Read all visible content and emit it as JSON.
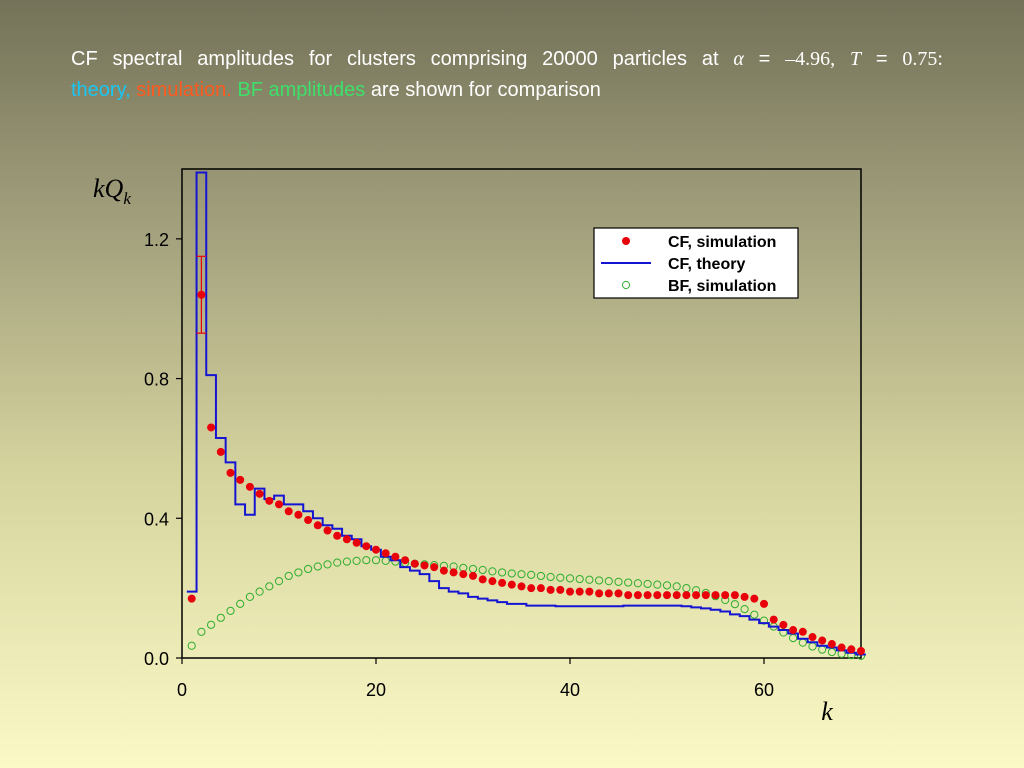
{
  "title": {
    "line1_words": [
      "CF",
      "spectral",
      "amplitudes",
      "for",
      "clusters",
      "comprising",
      "20000",
      "particles",
      "at"
    ],
    "alpha_symbol": "α",
    "equals": "=",
    "alpha_value": "–4.96,",
    "T_symbol": "T",
    "T_value": "0.75:",
    "line2": {
      "theory": "theory,",
      "simulation": "simulation.",
      "bf": "BF amplitudes",
      "rest": "are shown for comparison"
    }
  },
  "colors": {
    "cf_simulation": "#e8000a",
    "cf_theory": "#1414d2",
    "bf_simulation": "#2fae2f",
    "error_bar": "#e8000a",
    "theory_word": "#19c6f2",
    "simulation_word": "#ff5a1e",
    "bf_word": "#3ce06a"
  },
  "chart_data": {
    "type": "scatter",
    "xlabel": "k",
    "ylabel": "kQk",
    "ylabel_main": "kQ",
    "ylabel_sub": "k",
    "xlim": [
      0,
      70
    ],
    "ylim": [
      0,
      1.4
    ],
    "xticks": [
      0,
      20,
      40,
      60
    ],
    "xtick_labels": [
      "0",
      "20",
      "40",
      "60"
    ],
    "yticks": [
      0,
      0.4,
      0.8,
      1.2
    ],
    "ytick_labels": [
      "0.0",
      "0.4",
      "0.8",
      "1.2"
    ],
    "grid": false,
    "legend": {
      "placement": "top-right",
      "entries": [
        {
          "name": "CF, simulation",
          "marker": "filled-circle"
        },
        {
          "name": "CF, theory",
          "marker": "line"
        },
        {
          "name": "BF, simulation",
          "marker": "open-circle"
        }
      ]
    },
    "series": [
      {
        "name": "CF, simulation",
        "style": "filled-circle",
        "x": [
          1,
          2,
          3,
          4,
          5,
          6,
          7,
          8,
          9,
          10,
          11,
          12,
          13,
          14,
          15,
          16,
          17,
          18,
          19,
          20,
          21,
          22,
          23,
          24,
          25,
          26,
          27,
          28,
          29,
          30,
          31,
          32,
          33,
          34,
          35,
          36,
          37,
          38,
          39,
          40,
          41,
          42,
          43,
          44,
          45,
          46,
          47,
          48,
          49,
          50,
          51,
          52,
          53,
          54,
          55,
          56,
          57,
          58,
          59,
          60,
          61,
          62,
          63,
          64,
          65,
          66,
          67,
          68,
          69,
          70
        ],
        "y": [
          0.17,
          1.04,
          0.66,
          0.59,
          0.53,
          0.51,
          0.49,
          0.47,
          0.45,
          0.44,
          0.42,
          0.41,
          0.395,
          0.38,
          0.365,
          0.35,
          0.34,
          0.33,
          0.32,
          0.31,
          0.3,
          0.29,
          0.28,
          0.27,
          0.265,
          0.26,
          0.25,
          0.245,
          0.24,
          0.235,
          0.225,
          0.22,
          0.215,
          0.21,
          0.205,
          0.2,
          0.2,
          0.195,
          0.195,
          0.19,
          0.19,
          0.19,
          0.185,
          0.185,
          0.185,
          0.18,
          0.18,
          0.18,
          0.18,
          0.18,
          0.18,
          0.18,
          0.18,
          0.18,
          0.18,
          0.18,
          0.18,
          0.175,
          0.17,
          0.155,
          0.11,
          0.095,
          0.08,
          0.075,
          0.06,
          0.05,
          0.04,
          0.03,
          0.025,
          0.02
        ]
      },
      {
        "name": "CF, theory",
        "style": "step",
        "x": [
          0.5,
          1.5,
          2.5,
          3.5,
          4.5,
          5.5,
          6.5,
          7.5,
          8.5,
          9.5,
          10.5,
          11.5,
          12.5,
          13.5,
          14.5,
          15.5,
          16.5,
          17.5,
          18.5,
          19.5,
          20.5,
          21.5,
          22.5,
          23.5,
          24.5,
          25.5,
          26.5,
          27.5,
          28.5,
          29.5,
          30.5,
          31.5,
          32.5,
          33.5,
          34.5,
          35.5,
          36.5,
          37.5,
          38.5,
          39.5,
          40.5,
          41.5,
          42.5,
          43.5,
          44.5,
          45.5,
          46.5,
          47.5,
          48.5,
          49.5,
          50.5,
          51.5,
          52.5,
          53.5,
          54.5,
          55.5,
          56.5,
          57.5,
          58.5,
          59.5,
          60.5,
          61.5,
          62.5,
          63.5,
          64.5,
          65.5,
          66.5,
          67.5,
          68.5,
          69.5,
          70.5
        ],
        "y": [
          0.19,
          1.39,
          0.81,
          0.63,
          0.56,
          0.44,
          0.41,
          0.485,
          0.455,
          0.465,
          0.44,
          0.44,
          0.42,
          0.4,
          0.38,
          0.37,
          0.35,
          0.34,
          0.32,
          0.31,
          0.29,
          0.28,
          0.26,
          0.25,
          0.24,
          0.22,
          0.2,
          0.19,
          0.185,
          0.175,
          0.17,
          0.165,
          0.16,
          0.155,
          0.155,
          0.15,
          0.15,
          0.15,
          0.148,
          0.148,
          0.148,
          0.148,
          0.148,
          0.148,
          0.148,
          0.15,
          0.15,
          0.15,
          0.15,
          0.15,
          0.15,
          0.148,
          0.145,
          0.142,
          0.138,
          0.133,
          0.125,
          0.12,
          0.11,
          0.1,
          0.09,
          0.08,
          0.07,
          0.055,
          0.045,
          0.035,
          0.03,
          0.022,
          0.015,
          0.01,
          0.01
        ]
      },
      {
        "name": "BF, simulation",
        "style": "open-circle",
        "x": [
          1,
          2,
          3,
          4,
          5,
          6,
          7,
          8,
          9,
          10,
          11,
          12,
          13,
          14,
          15,
          16,
          17,
          18,
          19,
          20,
          21,
          22,
          23,
          24,
          25,
          26,
          27,
          28,
          29,
          30,
          31,
          32,
          33,
          34,
          35,
          36,
          37,
          38,
          39,
          40,
          41,
          42,
          43,
          44,
          45,
          46,
          47,
          48,
          49,
          50,
          51,
          52,
          53,
          54,
          55,
          56,
          57,
          58,
          59,
          60,
          61,
          62,
          63,
          64,
          65,
          66,
          67,
          68,
          69,
          70
        ],
        "y": [
          0.035,
          0.075,
          0.095,
          0.115,
          0.135,
          0.155,
          0.175,
          0.19,
          0.205,
          0.22,
          0.235,
          0.245,
          0.255,
          0.262,
          0.268,
          0.273,
          0.276,
          0.278,
          0.28,
          0.28,
          0.278,
          0.276,
          0.272,
          0.27,
          0.268,
          0.266,
          0.264,
          0.262,
          0.258,
          0.255,
          0.252,
          0.248,
          0.245,
          0.242,
          0.24,
          0.238,
          0.235,
          0.232,
          0.23,
          0.228,
          0.226,
          0.224,
          0.222,
          0.22,
          0.218,
          0.216,
          0.214,
          0.212,
          0.21,
          0.208,
          0.205,
          0.2,
          0.194,
          0.186,
          0.177,
          0.166,
          0.154,
          0.14,
          0.124,
          0.107,
          0.09,
          0.073,
          0.057,
          0.044,
          0.033,
          0.024,
          0.017,
          0.012,
          0.008,
          0.006
        ]
      }
    ],
    "error_bars": [
      {
        "series": "CF, simulation",
        "x": 2,
        "low": 0.93,
        "high": 1.15
      }
    ]
  }
}
